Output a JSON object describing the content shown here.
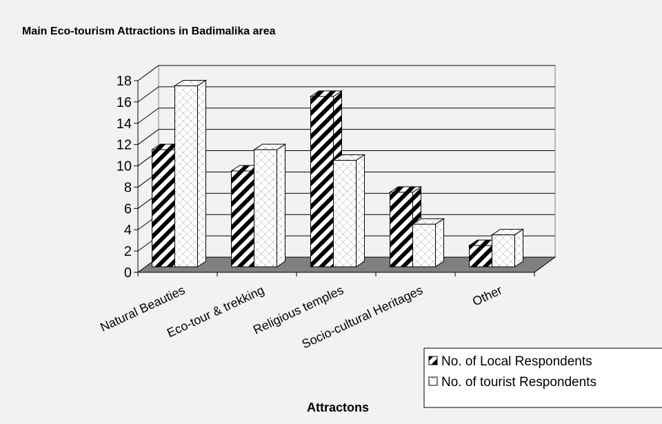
{
  "chart_data": {
    "type": "bar3d",
    "title": "Main Eco-tourism Attractions in Badimalika area",
    "x_label": "Attractons",
    "categories": [
      "Natural Beauties",
      "Eco-tour & trekking",
      "Religious temples",
      "Socio-cultural Heritages",
      "Other"
    ],
    "series": [
      {
        "name": "No. of Local Respondents",
        "color": "#000000",
        "values": [
          11,
          9,
          16,
          7,
          2
        ]
      },
      {
        "name": "No. of tourist Respondents",
        "color": "#808080",
        "values": [
          17,
          11,
          10,
          4,
          3
        ]
      }
    ],
    "ylim": [
      0,
      18
    ],
    "yticks": [
      0,
      2,
      4,
      6,
      8,
      10,
      12,
      14,
      16,
      18
    ],
    "grid": true,
    "legend": "lower right"
  }
}
